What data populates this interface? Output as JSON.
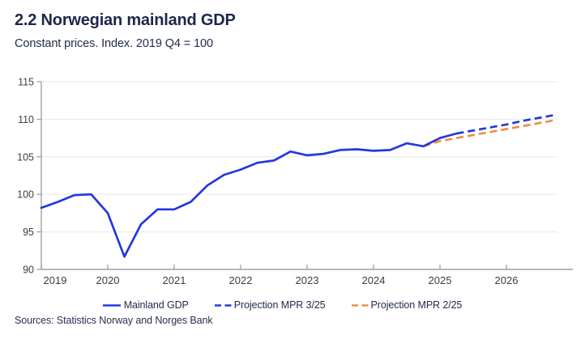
{
  "header": {
    "title": "2.2 Norwegian mainland GDP",
    "subtitle": "Constant prices. Index. 2019 Q4 = 100"
  },
  "chart_data": {
    "type": "line",
    "title": "2.2 Norwegian mainland GDP",
    "subtitle": "Constant prices. Index. 2019 Q4 = 100",
    "x_axis": {
      "min": 2019,
      "max": 2027,
      "tick_labels": [
        "2019",
        "2020",
        "2021",
        "2022",
        "2023",
        "2024",
        "2025",
        "2026"
      ],
      "unit": "year, data quarterly"
    },
    "y_axis": {
      "min": 90,
      "max": 115,
      "ticks": [
        90,
        95,
        100,
        105,
        110,
        115
      ]
    },
    "grid": "horizontal",
    "legend_position": "bottom-center",
    "series": [
      {
        "name": "Mainland GDP",
        "color": "#2438dc",
        "style": "solid",
        "x_start": 2019.0,
        "x_step": 0.25,
        "values": [
          98.2,
          99.0,
          99.9,
          100.0,
          97.5,
          91.7,
          96.0,
          98.0,
          98.0,
          99.0,
          101.2,
          102.6,
          103.3,
          104.2,
          104.5,
          105.7,
          105.2,
          105.4,
          105.9,
          106.0,
          105.8,
          105.9,
          106.8,
          106.4,
          107.5,
          108.1
        ]
      },
      {
        "name": "Projection MPR 3/25",
        "color": "#2438dc",
        "style": "dashed",
        "x_start": 2025.25,
        "x_step": 0.25,
        "values": [
          108.1,
          108.5,
          108.9,
          109.3,
          109.8,
          110.2,
          110.6
        ]
      },
      {
        "name": "Projection MPR 2/25",
        "color": "#ee8f45",
        "style": "dashed",
        "x_start": 2024.75,
        "x_step": 0.25,
        "values": [
          106.4,
          107.1,
          107.5,
          107.9,
          108.3,
          108.7,
          109.1,
          109.5,
          109.9
        ]
      }
    ],
    "colors": {
      "grid": "#ececec",
      "axis": "#a0a0a0",
      "tick_label": "#3d3d3d"
    }
  },
  "footer": {
    "sources": "Sources: Statistics Norway and Norges Bank"
  }
}
